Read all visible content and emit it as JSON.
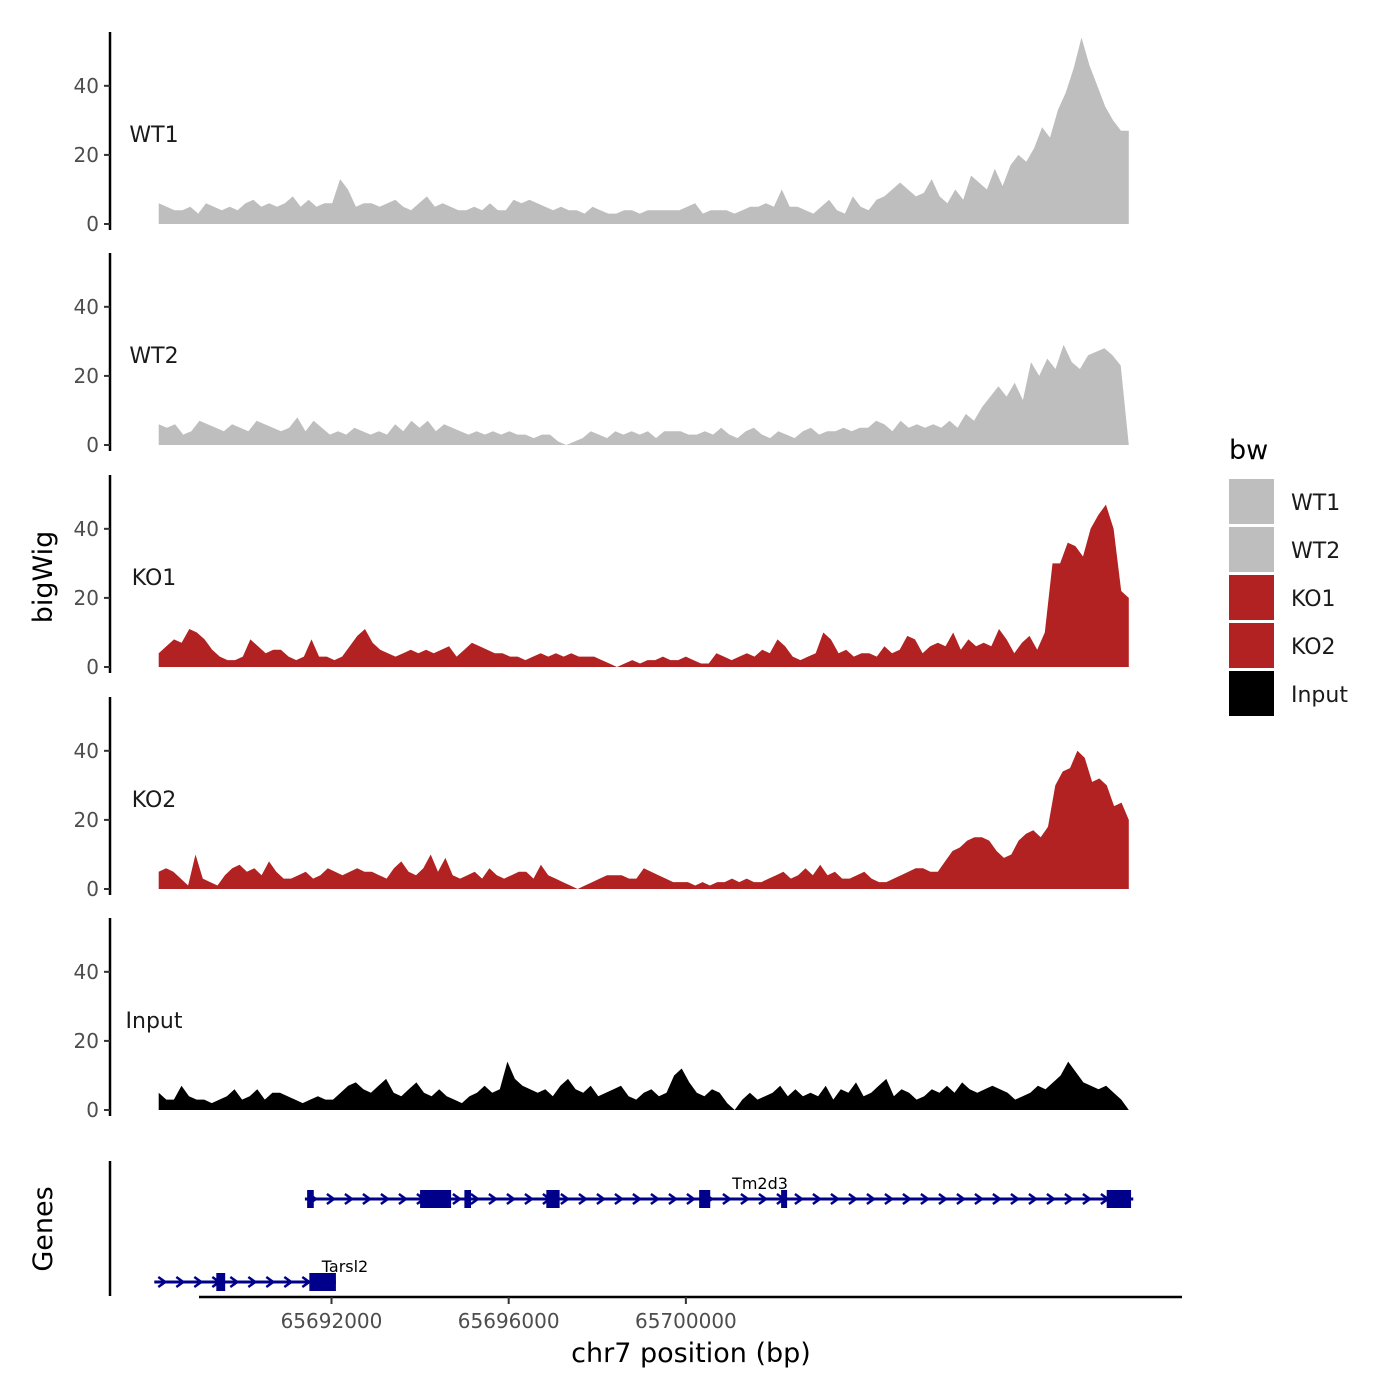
{
  "chart_data": {
    "type": "area",
    "title": "",
    "xlabel": "chr7 position (bp)",
    "ylabel": "bigWig",
    "genes_label": "Genes",
    "xlim": [
      65687000,
      65711200
    ],
    "ylim": [
      0,
      55
    ],
    "x_ticks": [
      65692000,
      65696000,
      65700000
    ],
    "x_tick_labels": [
      "65692000",
      "65696000",
      "65700000"
    ],
    "y_ticks": [
      0,
      20,
      40
    ],
    "y_tick_labels": [
      "0",
      "20",
      "40"
    ],
    "region": [
      65688100,
      65710000
    ],
    "legend": {
      "title": "bw",
      "position": "right",
      "entries": [
        {
          "label": "WT1",
          "color": "#BEBEBE"
        },
        {
          "label": "WT2",
          "color": "#BEBEBE"
        },
        {
          "label": "KO1",
          "color": "#B22222"
        },
        {
          "label": "KO2",
          "color": "#B22222"
        },
        {
          "label": "Input",
          "color": "#000000"
        }
      ]
    },
    "series": [
      {
        "name": "WT1",
        "color": "#BEBEBE",
        "values": [
          6,
          5,
          4,
          4,
          5,
          3,
          6,
          5,
          4,
          5,
          4,
          6,
          7,
          5,
          6,
          5,
          6,
          8,
          5,
          7,
          5,
          6,
          6,
          13,
          10,
          5,
          6,
          6,
          5,
          6,
          7,
          5,
          4,
          6,
          8,
          5,
          6,
          5,
          4,
          4,
          5,
          4,
          6,
          4,
          4,
          7,
          6,
          7,
          6,
          5,
          4,
          5,
          4,
          4,
          3,
          5,
          4,
          3,
          3,
          4,
          4,
          3,
          4,
          4,
          4,
          4,
          4,
          5,
          6,
          3,
          4,
          4,
          4,
          3,
          4,
          5,
          5,
          6,
          5,
          10,
          5,
          5,
          4,
          3,
          5,
          7,
          4,
          3,
          8,
          5,
          4,
          7,
          8,
          10,
          12,
          10,
          8,
          9,
          13,
          8,
          6,
          10,
          7,
          14,
          12,
          10,
          16,
          11,
          17,
          20,
          18,
          22,
          28,
          25,
          33,
          38,
          45,
          54,
          46,
          40,
          34,
          30,
          27,
          27
        ]
      },
      {
        "name": "WT2",
        "color": "#BEBEBE",
        "values": [
          6,
          5,
          6,
          3,
          4,
          7,
          6,
          5,
          4,
          6,
          5,
          4,
          7,
          6,
          5,
          4,
          5,
          8,
          4,
          7,
          5,
          3,
          4,
          3,
          5,
          4,
          3,
          4,
          3,
          6,
          4,
          7,
          5,
          7,
          4,
          6,
          5,
          4,
          3,
          4,
          3,
          4,
          3,
          4,
          3,
          3,
          2,
          3,
          3,
          1,
          0,
          1,
          2,
          4,
          3,
          2,
          4,
          3,
          4,
          3,
          4,
          2,
          4,
          4,
          4,
          3,
          3,
          4,
          3,
          5,
          3,
          2,
          4,
          5,
          3,
          2,
          4,
          3,
          2,
          4,
          5,
          3,
          4,
          4,
          5,
          4,
          5,
          5,
          7,
          6,
          4,
          7,
          5,
          6,
          5,
          6,
          5,
          7,
          5,
          9,
          7,
          11,
          14,
          17,
          14,
          18,
          13,
          24,
          20,
          25,
          22,
          29,
          24,
          22,
          26,
          27,
          28,
          26,
          23,
          0
        ]
      },
      {
        "name": "KO1",
        "color": "#B22222",
        "values": [
          4,
          6,
          8,
          7,
          11,
          10,
          8,
          5,
          3,
          2,
          2,
          3,
          8,
          6,
          4,
          5,
          5,
          3,
          2,
          3,
          8,
          3,
          3,
          2,
          3,
          6,
          9,
          11,
          7,
          5,
          4,
          3,
          4,
          5,
          4,
          5,
          4,
          5,
          6,
          3,
          5,
          7,
          6,
          5,
          4,
          4,
          3,
          3,
          2,
          3,
          4,
          3,
          4,
          3,
          4,
          3,
          3,
          3,
          2,
          1,
          0,
          1,
          2,
          1,
          2,
          2,
          3,
          2,
          2,
          3,
          2,
          1,
          1,
          4,
          3,
          2,
          3,
          4,
          3,
          5,
          4,
          8,
          6,
          3,
          2,
          3,
          4,
          10,
          8,
          4,
          5,
          3,
          4,
          4,
          3,
          6,
          4,
          5,
          9,
          8,
          4,
          6,
          7,
          6,
          10,
          5,
          8,
          6,
          7,
          6,
          11,
          8,
          4,
          7,
          9,
          5,
          10,
          30,
          30,
          36,
          35,
          32,
          40,
          44,
          47,
          40,
          22,
          20
        ]
      },
      {
        "name": "KO2",
        "color": "#B22222",
        "values": [
          5,
          6,
          5,
          3,
          1,
          10,
          3,
          2,
          1,
          4,
          6,
          7,
          5,
          6,
          4,
          8,
          5,
          3,
          3,
          4,
          5,
          3,
          4,
          6,
          5,
          4,
          5,
          6,
          5,
          5,
          4,
          3,
          6,
          8,
          5,
          4,
          6,
          10,
          5,
          9,
          4,
          3,
          4,
          5,
          3,
          6,
          4,
          3,
          4,
          5,
          5,
          3,
          7,
          4,
          3,
          2,
          1,
          0,
          1,
          2,
          3,
          4,
          4,
          4,
          3,
          3,
          6,
          5,
          4,
          3,
          2,
          2,
          2,
          1,
          2,
          1,
          2,
          2,
          3,
          2,
          3,
          2,
          2,
          3,
          4,
          5,
          3,
          4,
          6,
          4,
          7,
          4,
          5,
          3,
          3,
          4,
          5,
          3,
          2,
          2,
          3,
          4,
          5,
          6,
          6,
          5,
          5,
          8,
          11,
          12,
          14,
          15,
          15,
          14,
          11,
          9,
          10,
          14,
          16,
          17,
          15,
          18,
          30,
          34,
          35,
          40,
          38,
          31,
          32,
          30,
          24,
          25,
          20
        ]
      },
      {
        "name": "Input",
        "color": "#000000",
        "values": [
          5,
          3,
          3,
          7,
          4,
          3,
          3,
          2,
          3,
          4,
          6,
          3,
          4,
          6,
          3,
          5,
          5,
          4,
          3,
          2,
          3,
          4,
          3,
          3,
          5,
          7,
          8,
          6,
          5,
          7,
          9,
          5,
          4,
          6,
          8,
          5,
          4,
          6,
          4,
          3,
          2,
          4,
          5,
          7,
          5,
          6,
          14,
          9,
          7,
          6,
          5,
          6,
          4,
          7,
          9,
          6,
          5,
          7,
          4,
          5,
          6,
          7,
          4,
          3,
          5,
          6,
          4,
          5,
          10,
          12,
          8,
          5,
          4,
          6,
          5,
          2,
          0,
          3,
          5,
          3,
          4,
          5,
          7,
          4,
          6,
          4,
          5,
          4,
          7,
          3,
          6,
          5,
          8,
          4,
          5,
          7,
          9,
          4,
          6,
          5,
          3,
          4,
          6,
          5,
          7,
          5,
          8,
          6,
          5,
          6,
          7,
          6,
          5,
          3,
          4,
          5,
          7,
          6,
          8,
          10,
          14,
          11,
          8,
          7,
          6,
          7,
          5,
          3,
          0
        ]
      }
    ],
    "genes": [
      {
        "name": "Tm2d3",
        "strand": "+",
        "start": 65691400,
        "end": 65710100,
        "exons": [
          [
            65691450,
            65691600
          ],
          [
            65694000,
            65694700
          ],
          [
            65695000,
            65695150
          ],
          [
            65696850,
            65697150
          ],
          [
            65700300,
            65700550
          ],
          [
            65702150,
            65702250
          ],
          [
            65709500,
            65710050
          ]
        ]
      },
      {
        "name": "Tarsl2",
        "strand": "+",
        "start": 65688000,
        "end": 65692100,
        "exons": [
          [
            65689400,
            65689600
          ],
          [
            65691500,
            65692100
          ]
        ]
      }
    ]
  }
}
